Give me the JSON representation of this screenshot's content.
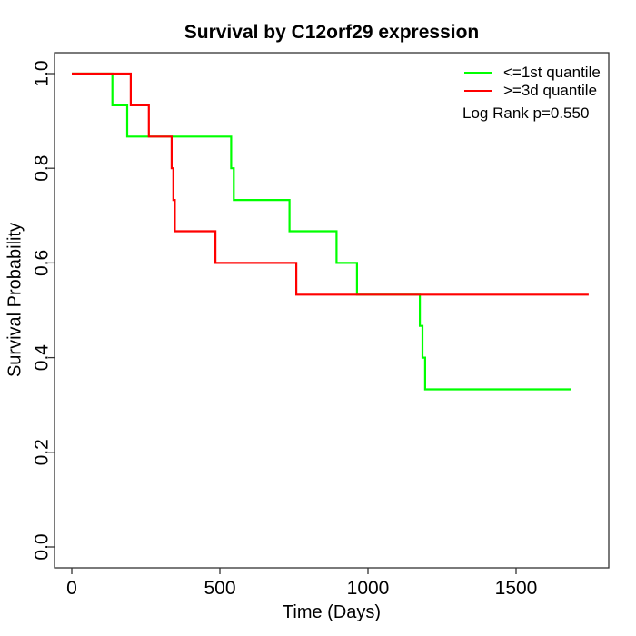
{
  "chart_data": {
    "type": "line",
    "subtype": "kaplan-meier-step",
    "title": "Survival by C12orf29 expression",
    "xlabel": "Time (Days)",
    "ylabel": "Survival Probability",
    "xlim": [
      0,
      1810
    ],
    "ylim": [
      0,
      1.0
    ],
    "x_ticks": [
      "0",
      "500",
      "1000",
      "1500"
    ],
    "y_ticks": [
      "0.0",
      "0.2",
      "0.4",
      "0.6",
      "0.8",
      "1.0"
    ],
    "grid": false,
    "legend_position": "top-right",
    "annotation": "Log Rank p=0.550",
    "axis_color": "#333333",
    "series": [
      {
        "name": "<=1st quantile",
        "color": "#00ff00",
        "points": [
          [
            0,
            1.0
          ],
          [
            137,
            0.933
          ],
          [
            187,
            0.867
          ],
          [
            538,
            0.8
          ],
          [
            547,
            0.733
          ],
          [
            735,
            0.667
          ],
          [
            894,
            0.6
          ],
          [
            963,
            0.533
          ],
          [
            1175,
            0.467
          ],
          [
            1184,
            0.4
          ],
          [
            1193,
            0.333
          ]
        ],
        "end_time": 1684
      },
      {
        "name": ">=3d quantile",
        "color": "#ff0000",
        "points": [
          [
            0,
            1.0
          ],
          [
            199,
            0.933
          ],
          [
            260,
            0.867
          ],
          [
            337,
            0.8
          ],
          [
            343,
            0.733
          ],
          [
            348,
            0.667
          ],
          [
            485,
            0.6
          ],
          [
            758,
            0.533
          ]
        ],
        "end_time": 1745
      }
    ]
  }
}
